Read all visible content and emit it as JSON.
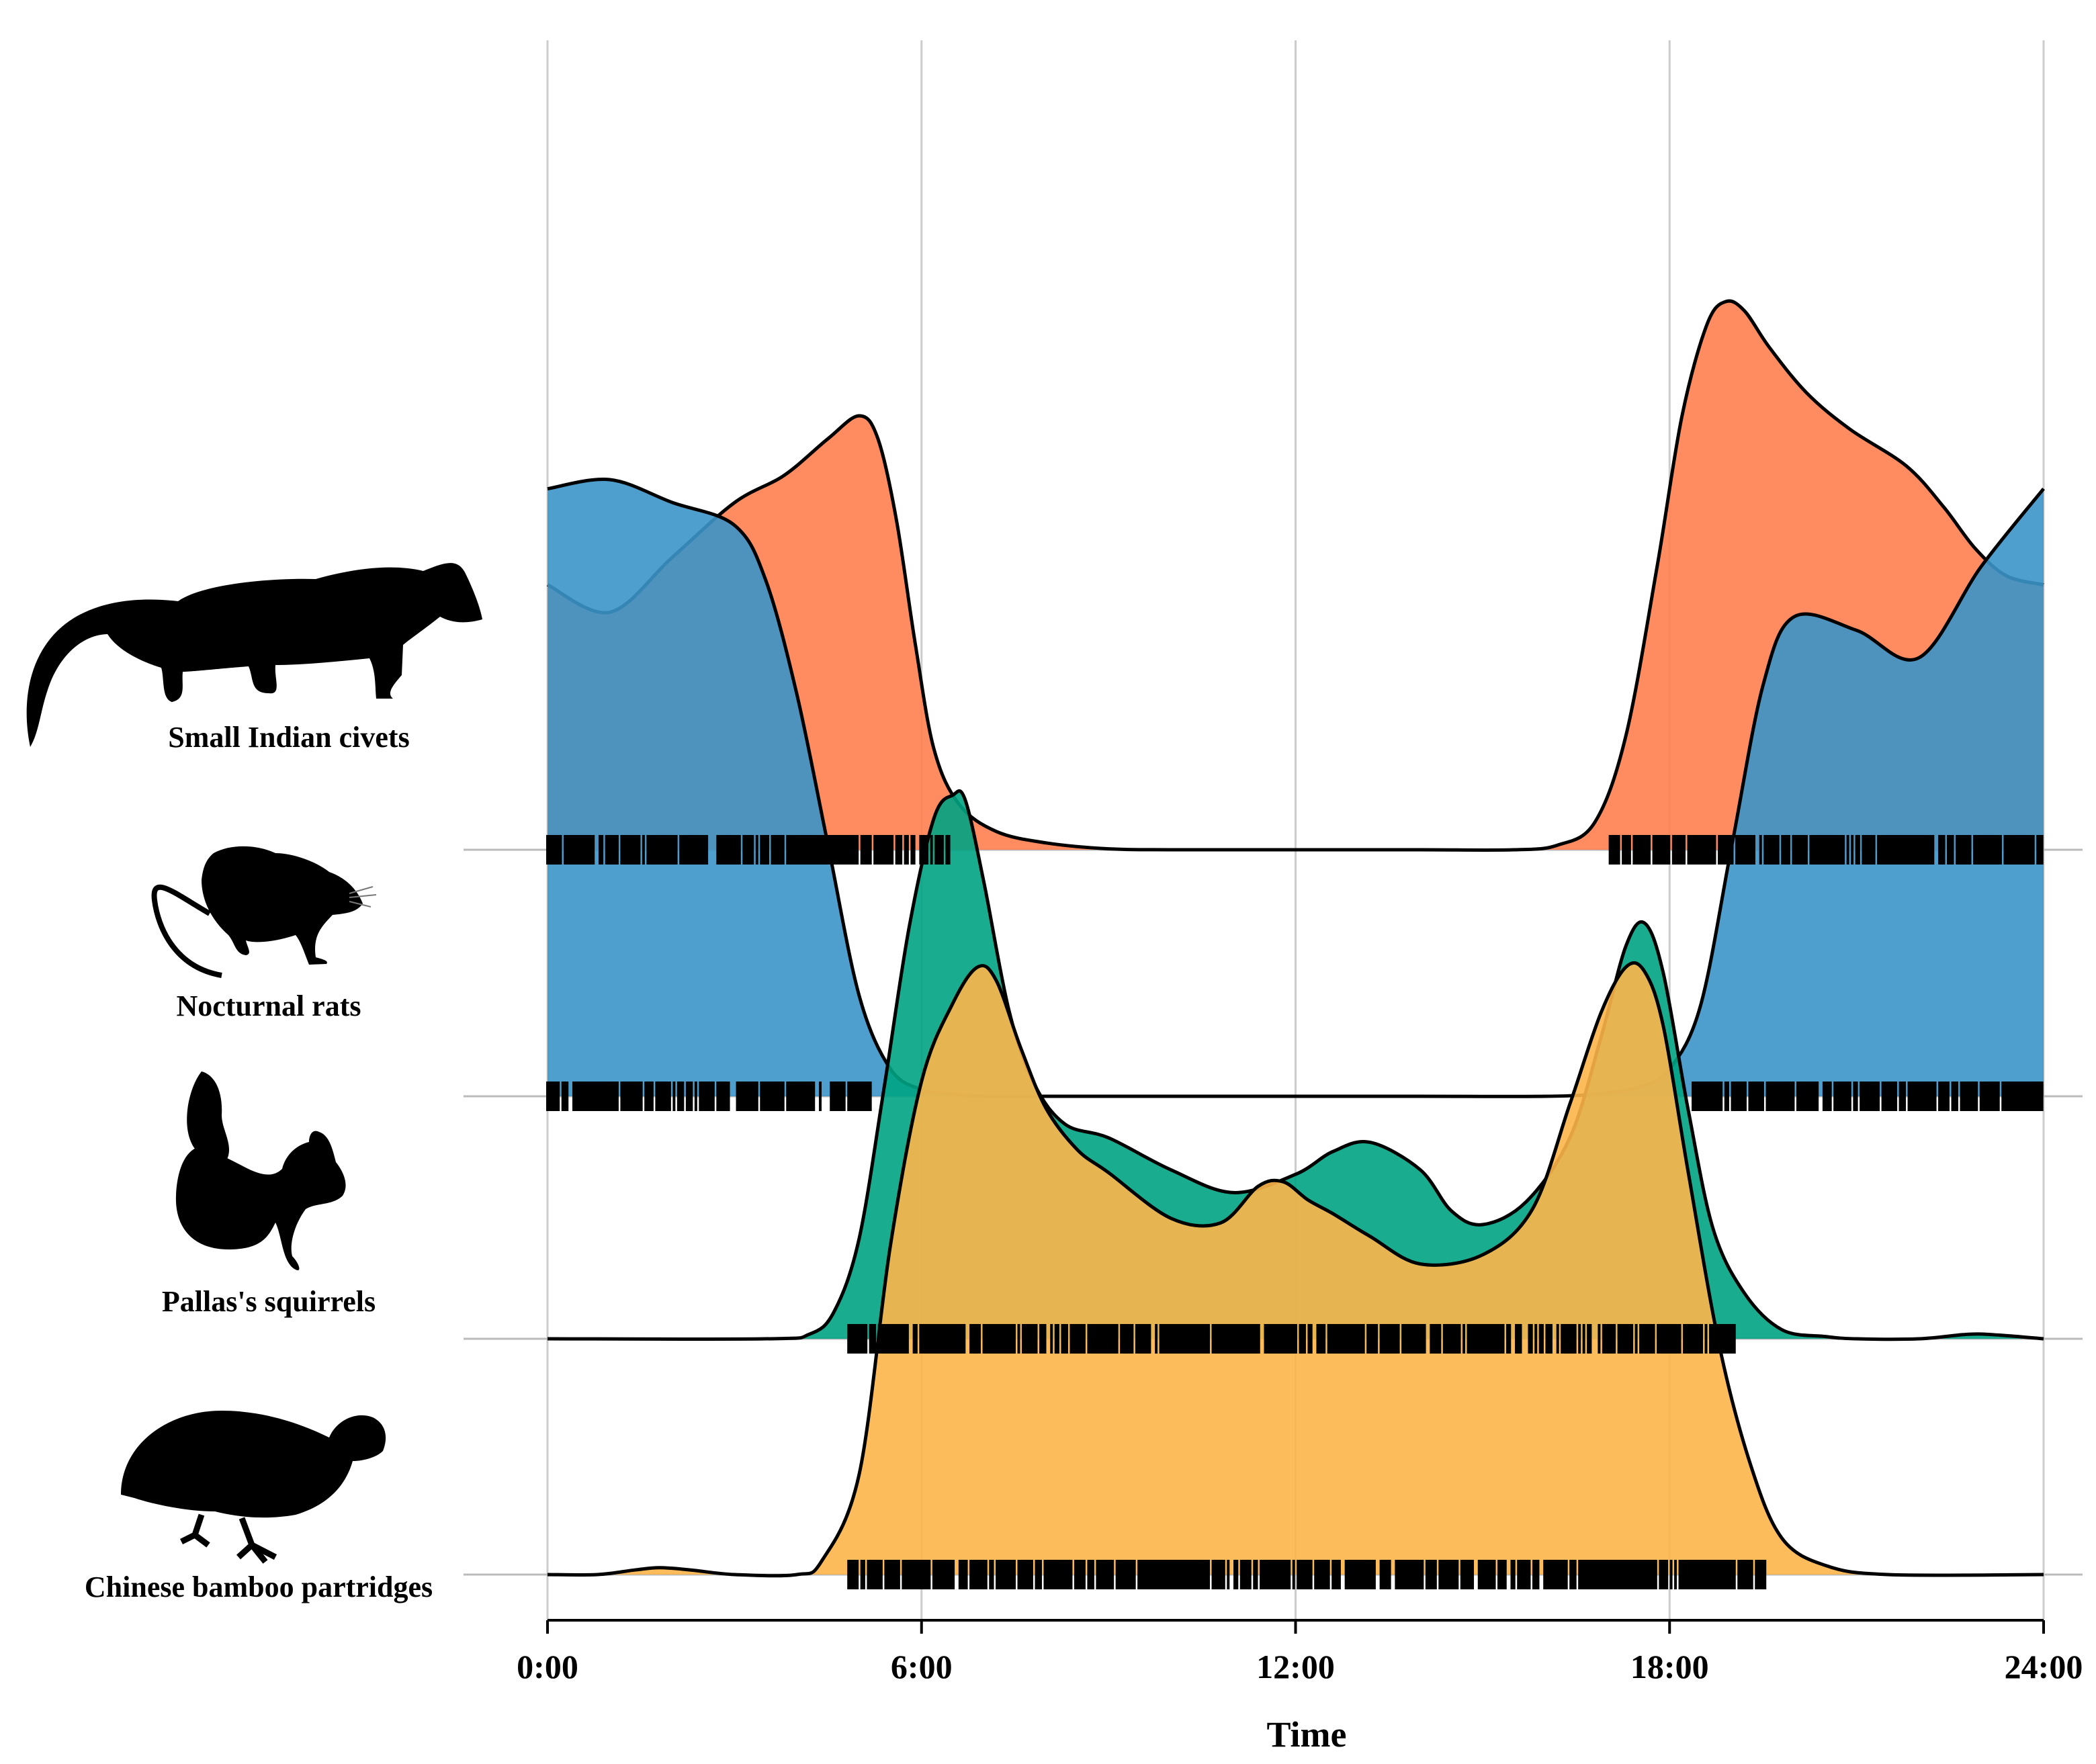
{
  "chart_data": {
    "type": "area",
    "title": "",
    "xlabel": "Time",
    "ylabel": "",
    "xlim": [
      0,
      24
    ],
    "x_ticks": [
      {
        "value": 0,
        "label": "0:00"
      },
      {
        "value": 6,
        "label": "6:00"
      },
      {
        "value": 12,
        "label": "12:00"
      },
      {
        "value": 18,
        "label": "18:00"
      },
      {
        "value": 24,
        "label": "24:00"
      }
    ],
    "grid": true,
    "series": [
      {
        "name": "Small Indian civets",
        "color": "#FF7F50",
        "x": [
          0,
          1,
          2,
          3,
          3.8,
          4.5,
          5,
          5.3,
          5.6,
          5.9,
          6.2,
          6.6,
          7.2,
          8,
          9,
          10,
          12,
          14,
          15.5,
          16.2,
          16.8,
          17.3,
          17.8,
          18.2,
          18.6,
          18.9,
          19.2,
          19.6,
          20.2,
          20.9,
          21.8,
          22.4,
          22.9,
          23.4,
          24
        ],
        "values": [
          0.58,
          0.52,
          0.64,
          0.76,
          0.82,
          0.9,
          0.95,
          0.9,
          0.72,
          0.45,
          0.22,
          0.1,
          0.04,
          0.015,
          0.002,
          0,
          0,
          0,
          0,
          0.01,
          0.06,
          0.25,
          0.62,
          0.95,
          1.15,
          1.2,
          1.18,
          1.1,
          1.0,
          0.92,
          0.84,
          0.75,
          0.66,
          0.6,
          0.58
        ]
      },
      {
        "name": "Nocturnal rats",
        "color": "#3B93C9",
        "x": [
          0,
          1,
          2,
          3,
          3.5,
          4,
          4.5,
          5,
          5.5,
          6,
          6.5,
          7,
          8,
          10,
          12,
          14,
          16,
          16.8,
          17.5,
          18,
          18.5,
          19,
          19.5,
          20,
          21,
          22,
          23,
          24
        ],
        "values": [
          1.33,
          1.35,
          1.3,
          1.25,
          1.13,
          0.88,
          0.55,
          0.22,
          0.06,
          0.015,
          0.005,
          0,
          0,
          0,
          0,
          0,
          0,
          0.005,
          0.02,
          0.06,
          0.2,
          0.55,
          0.9,
          1.05,
          1.02,
          0.96,
          1.16,
          1.33
        ]
      },
      {
        "name": "Pallas's squirrels",
        "color": "#00A383",
        "x": [
          0,
          3.5,
          4.2,
          4.6,
          5,
          5.4,
          5.8,
          6.2,
          6.5,
          6.7,
          7,
          7.4,
          7.8,
          8.3,
          9,
          10,
          11,
          12,
          12.6,
          13.2,
          14,
          14.5,
          15,
          15.7,
          16.4,
          16.9,
          17.3,
          17.6,
          17.9,
          18.3,
          18.7,
          19.2,
          19.8,
          20.5,
          21,
          22,
          22.8,
          23.3,
          24
        ],
        "values": [
          0,
          0,
          0.01,
          0.06,
          0.22,
          0.55,
          0.9,
          1.14,
          1.19,
          1.18,
          1.0,
          0.72,
          0.56,
          0.47,
          0.44,
          0.37,
          0.32,
          0.36,
          0.41,
          0.43,
          0.37,
          0.28,
          0.25,
          0.3,
          0.44,
          0.66,
          0.86,
          0.91,
          0.8,
          0.5,
          0.24,
          0.1,
          0.02,
          0.005,
          0,
          0,
          0.01,
          0.008,
          0
        ]
      },
      {
        "name": "Chinese bamboo partridges",
        "color": "#FDB54A",
        "x": [
          0,
          0.8,
          1.4,
          1.8,
          2.3,
          3,
          4,
          4.4,
          5,
          5.5,
          6,
          6.5,
          6.9,
          7.2,
          7.6,
          8,
          8.5,
          9,
          10,
          10.8,
          11.4,
          11.8,
          12.2,
          12.6,
          13.2,
          14,
          15,
          15.8,
          16.4,
          16.9,
          17.3,
          17.6,
          17.9,
          18.3,
          18.8,
          19.3,
          19.8,
          20.5,
          21.5,
          24
        ],
        "values": [
          0,
          0,
          0.01,
          0.015,
          0.01,
          0,
          0,
          0.03,
          0.22,
          0.72,
          1.08,
          1.25,
          1.33,
          1.3,
          1.15,
          1.02,
          0.93,
          0.88,
          0.78,
          0.77,
          0.85,
          0.86,
          0.82,
          0.79,
          0.74,
          0.68,
          0.7,
          0.8,
          1.03,
          1.23,
          1.33,
          1.32,
          1.2,
          0.88,
          0.5,
          0.24,
          0.08,
          0.02,
          0,
          0
        ]
      }
    ]
  }
}
